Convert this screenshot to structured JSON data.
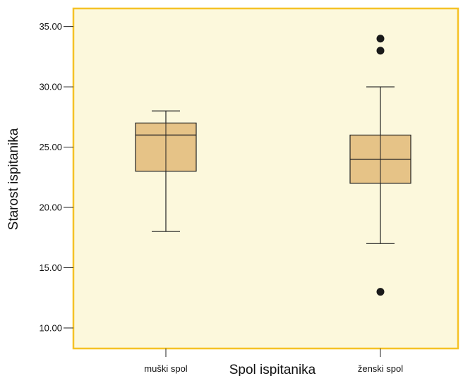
{
  "chart_data": {
    "type": "boxplot",
    "xlabel": "Spol ispitanika",
    "ylabel": "Starost ispitanika",
    "ylim": [
      8.3,
      36.5
    ],
    "yticks": [
      10,
      15,
      20,
      25,
      30,
      35
    ],
    "ytick_labels": [
      "10.00",
      "15.00",
      "20.00",
      "25.00",
      "30.00",
      "35.00"
    ],
    "categories": [
      "muški spol",
      "ženski spol"
    ],
    "boxes": [
      {
        "category": "muški spol",
        "whisker_low": 18,
        "q1": 23,
        "median": 26,
        "q3": 27,
        "whisker_high": 28,
        "outliers": []
      },
      {
        "category": "ženski spol",
        "whisker_low": 17,
        "q1": 22,
        "median": 24,
        "q3": 26,
        "whisker_high": 30,
        "outliers": [
          13,
          33,
          34
        ]
      }
    ],
    "grid": false,
    "colors": {
      "plot_bg": "#fcf8dc",
      "frame": "#f5c227",
      "box_fill": "#e6c387",
      "line": "#222222",
      "outlier": "#1a1a1a"
    }
  }
}
